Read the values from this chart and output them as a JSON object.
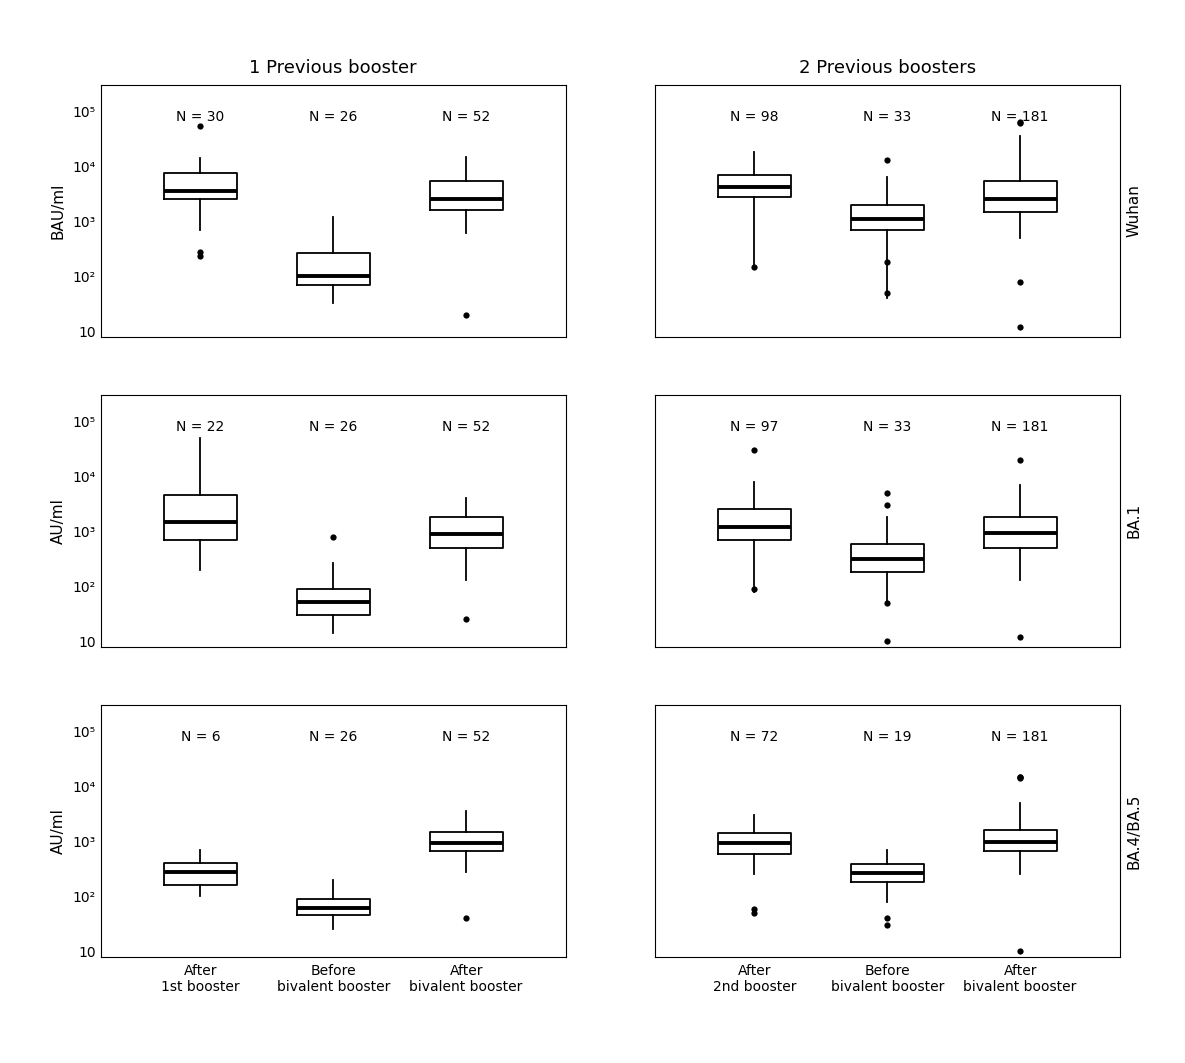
{
  "title_left": "1 Previous booster",
  "title_right": "2 Previous boosters",
  "row_labels": [
    "Wuhan",
    "BA.1",
    "BA.4/BA.5"
  ],
  "col_labels_left": [
    "After\n1st booster",
    "Before\nbivalent booster",
    "After\nbivalent booster"
  ],
  "col_labels_right": [
    "After\n2nd booster",
    "Before\nbivalent booster",
    "After\nbivalent booster"
  ],
  "ylabels": [
    "BAU/ml",
    "AU/ml",
    "AU/ml"
  ],
  "sample_sizes": {
    "left": [
      [
        "N = 30",
        "N = 26",
        "N = 52"
      ],
      [
        "N = 22",
        "N = 26",
        "N = 52"
      ],
      [
        "N = 6",
        "N = 26",
        "N = 52"
      ]
    ],
    "right": [
      [
        "N = 98",
        "N = 33",
        "N = 181"
      ],
      [
        "N = 97",
        "N = 33",
        "N = 181"
      ],
      [
        "N = 72",
        "N = 19",
        "N = 181"
      ]
    ]
  },
  "boxes": {
    "left": [
      [
        {
          "q1": 2500,
          "median": 3600,
          "q3": 7500,
          "whislo": 700,
          "whishi": 14000,
          "fliers": [
            55000,
            280,
            230
          ]
        },
        {
          "q1": 70,
          "median": 100,
          "q3": 270,
          "whislo": 33,
          "whishi": 1200,
          "fliers": []
        },
        {
          "q1": 1600,
          "median": 2500,
          "q3": 5500,
          "whislo": 600,
          "whishi": 15000,
          "fliers": [
            20
          ]
        }
      ],
      [
        {
          "q1": 700,
          "median": 1500,
          "q3": 4500,
          "whislo": 200,
          "whishi": 50000,
          "fliers": []
        },
        {
          "q1": 30,
          "median": 52,
          "q3": 90,
          "whislo": 14,
          "whishi": 270,
          "fliers": [
            800
          ]
        },
        {
          "q1": 500,
          "median": 900,
          "q3": 1800,
          "whislo": 130,
          "whishi": 4000,
          "fliers": [
            25
          ]
        }
      ],
      [
        {
          "q1": 160,
          "median": 280,
          "q3": 400,
          "whislo": 100,
          "whishi": 700,
          "fliers": []
        },
        {
          "q1": 45,
          "median": 62,
          "q3": 90,
          "whislo": 25,
          "whishi": 200,
          "fliers": []
        },
        {
          "q1": 680,
          "median": 950,
          "q3": 1500,
          "whislo": 280,
          "whishi": 3500,
          "fliers": [
            40
          ]
        }
      ]
    ],
    "right": [
      [
        {
          "q1": 2800,
          "median": 4200,
          "q3": 7000,
          "whislo": 150,
          "whishi": 18000,
          "fliers": [
            150
          ]
        },
        {
          "q1": 700,
          "median": 1100,
          "q3": 2000,
          "whislo": 40,
          "whishi": 6500,
          "fliers": [
            13000,
            180,
            50
          ]
        },
        {
          "q1": 1500,
          "median": 2500,
          "q3": 5500,
          "whislo": 500,
          "whishi": 35000,
          "fliers": [
            65000,
            62000,
            80,
            12
          ]
        }
      ],
      [
        {
          "q1": 700,
          "median": 1200,
          "q3": 2500,
          "whislo": 80,
          "whishi": 8000,
          "fliers": [
            30000,
            90
          ]
        },
        {
          "q1": 180,
          "median": 320,
          "q3": 600,
          "whislo": 50,
          "whishi": 1800,
          "fliers": [
            5000,
            3000,
            50,
            10
          ]
        },
        {
          "q1": 500,
          "median": 950,
          "q3": 1800,
          "whislo": 130,
          "whishi": 7000,
          "fliers": [
            20000,
            12
          ]
        }
      ],
      [
        {
          "q1": 600,
          "median": 950,
          "q3": 1400,
          "whislo": 250,
          "whishi": 3000,
          "fliers": [
            60,
            50
          ]
        },
        {
          "q1": 180,
          "median": 270,
          "q3": 380,
          "whislo": 80,
          "whishi": 700,
          "fliers": [
            40,
            30
          ]
        },
        {
          "q1": 680,
          "median": 980,
          "q3": 1600,
          "whislo": 250,
          "whishi": 5000,
          "fliers": [
            14000,
            14500,
            15000,
            10
          ]
        }
      ]
    ]
  },
  "ylim": [
    8,
    300000
  ],
  "yticks": [
    10,
    100,
    1000,
    10000,
    100000
  ],
  "yticklabels": [
    "10",
    "10²",
    "10³",
    "10⁴",
    "10⁵"
  ]
}
